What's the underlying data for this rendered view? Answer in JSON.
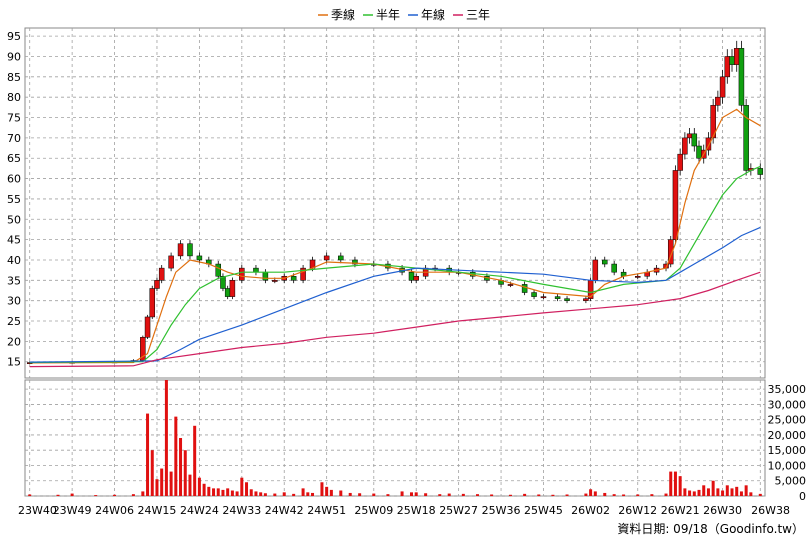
{
  "chart_data": {
    "type": "candlestick",
    "legend": {
      "placement": "top-center",
      "items": [
        {
          "name": "季線",
          "color": "#e07010"
        },
        {
          "name": "半年",
          "color": "#30c030"
        },
        {
          "name": "年線",
          "color": "#2060d0"
        },
        {
          "name": "三年",
          "color": "#d02060"
        }
      ]
    },
    "x_ticks": [
      "23W40",
      "23W49",
      "24W06",
      "24W15",
      "24W24",
      "24W33",
      "24W42",
      "24W51",
      "25W09",
      "25W18",
      "25W27",
      "25W36",
      "25W45",
      "26W02",
      "26W12",
      "26W21",
      "26W30",
      "26W38"
    ],
    "price_axis": {
      "min": 11,
      "max": 97,
      "ticks": [
        15,
        20,
        25,
        30,
        35,
        40,
        45,
        50,
        55,
        60,
        65,
        70,
        75,
        80,
        85,
        90,
        95
      ]
    },
    "volume_axis": {
      "min": 0,
      "max": 38000,
      "ticks": [
        0,
        5000,
        10000,
        15000,
        20000,
        25000,
        30000,
        35000
      ],
      "tick_labels": [
        "0",
        "5,000",
        "10,000",
        "15,000",
        "20,000",
        "25,000",
        "30,000",
        "35,000"
      ]
    },
    "price_points": [
      [
        "23W40",
        14.8
      ],
      [
        "23W49",
        14.9
      ],
      [
        "24W06",
        15
      ],
      [
        "24W10",
        15.3
      ],
      [
        "24W12",
        21
      ],
      [
        "24W13",
        26
      ],
      [
        "24W14",
        33
      ],
      [
        "24W15",
        35
      ],
      [
        "24W16",
        38
      ],
      [
        "24W18",
        41
      ],
      [
        "24W20",
        44
      ],
      [
        "24W22",
        41
      ],
      [
        "24W24",
        40
      ],
      [
        "24W26",
        39
      ],
      [
        "24W28",
        36
      ],
      [
        "24W29",
        33
      ],
      [
        "24W30",
        31
      ],
      [
        "24W31",
        35
      ],
      [
        "24W33",
        38
      ],
      [
        "24W36",
        37
      ],
      [
        "24W38",
        35
      ],
      [
        "24W40",
        35
      ],
      [
        "24W42",
        36
      ],
      [
        "24W44",
        35
      ],
      [
        "24W46",
        38
      ],
      [
        "24W48",
        40
      ],
      [
        "24W51",
        41
      ],
      [
        "25W02",
        40
      ],
      [
        "25W05",
        39
      ],
      [
        "25W09",
        39
      ],
      [
        "25W12",
        38
      ],
      [
        "25W15",
        37
      ],
      [
        "25W17",
        35
      ],
      [
        "25W18",
        36
      ],
      [
        "25W20",
        38
      ],
      [
        "25W22",
        38
      ],
      [
        "25W25",
        37
      ],
      [
        "25W27",
        37
      ],
      [
        "25W30",
        36
      ],
      [
        "25W33",
        35
      ],
      [
        "25W36",
        34
      ],
      [
        "25W38",
        34
      ],
      [
        "25W41",
        32
      ],
      [
        "25W43",
        31
      ],
      [
        "25W45",
        31
      ],
      [
        "25W48",
        30.5
      ],
      [
        "25W50",
        30
      ],
      [
        "26W01",
        30.5
      ],
      [
        "26W02",
        35
      ],
      [
        "26W03",
        40
      ],
      [
        "26W05",
        39
      ],
      [
        "26W07",
        37
      ],
      [
        "26W09",
        36
      ],
      [
        "26W12",
        36
      ],
      [
        "26W14",
        37
      ],
      [
        "26W16",
        38
      ],
      [
        "26W18",
        39
      ],
      [
        "26W19",
        45
      ],
      [
        "26W20",
        62
      ],
      [
        "26W21",
        66
      ],
      [
        "26W22",
        70
      ],
      [
        "26W23",
        71
      ],
      [
        "26W24",
        68
      ],
      [
        "26W25",
        65
      ],
      [
        "26W26",
        67
      ],
      [
        "26W27",
        70
      ],
      [
        "26W28",
        78
      ],
      [
        "26W29",
        80
      ],
      [
        "26W30",
        85
      ],
      [
        "26W31",
        90
      ],
      [
        "26W32",
        88
      ],
      [
        "26W33",
        92
      ],
      [
        "26W34",
        78
      ],
      [
        "26W35",
        62
      ],
      [
        "26W36",
        62.5
      ],
      [
        "26W38",
        61
      ]
    ],
    "series": [
      {
        "name": "季線",
        "color": "#e07010",
        "points": [
          [
            "23W40",
            14.7
          ],
          [
            "24W10",
            14.8
          ],
          [
            "24W13",
            17
          ],
          [
            "24W15",
            24
          ],
          [
            "24W17",
            31
          ],
          [
            "24W19",
            37
          ],
          [
            "24W22",
            40
          ],
          [
            "24W26",
            39
          ],
          [
            "24W30",
            37
          ],
          [
            "24W33",
            36
          ],
          [
            "24W38",
            35.5
          ],
          [
            "24W42",
            35.5
          ],
          [
            "24W48",
            38
          ],
          [
            "24W51",
            39.5
          ],
          [
            "25W09",
            39
          ],
          [
            "25W18",
            37
          ],
          [
            "25W27",
            37
          ],
          [
            "25W36",
            35
          ],
          [
            "25W45",
            32
          ],
          [
            "26W02",
            31
          ],
          [
            "26W05",
            34
          ],
          [
            "26W09",
            36
          ],
          [
            "26W14",
            37
          ],
          [
            "26W18",
            38
          ],
          [
            "26W20",
            44
          ],
          [
            "26W22",
            54
          ],
          [
            "26W24",
            62
          ],
          [
            "26W27",
            68
          ],
          [
            "26W30",
            75
          ],
          [
            "26W33",
            77
          ],
          [
            "26W35",
            75
          ],
          [
            "26W38",
            73
          ]
        ]
      },
      {
        "name": "半年",
        "color": "#30c030",
        "points": [
          [
            "23W40",
            14.8
          ],
          [
            "24W12",
            15
          ],
          [
            "24W15",
            18
          ],
          [
            "24W18",
            24
          ],
          [
            "24W21",
            29
          ],
          [
            "24W24",
            33
          ],
          [
            "24W28",
            35.5
          ],
          [
            "24W33",
            37
          ],
          [
            "24W42",
            37
          ],
          [
            "24W51",
            38
          ],
          [
            "25W09",
            39
          ],
          [
            "25W18",
            38
          ],
          [
            "25W27",
            37
          ],
          [
            "25W36",
            36
          ],
          [
            "25W45",
            34
          ],
          [
            "26W02",
            32
          ],
          [
            "26W09",
            34
          ],
          [
            "26W18",
            35
          ],
          [
            "26W21",
            38
          ],
          [
            "26W24",
            44
          ],
          [
            "26W27",
            50
          ],
          [
            "26W30",
            56
          ],
          [
            "26W33",
            60
          ],
          [
            "26W36",
            62
          ],
          [
            "26W38",
            63
          ]
        ]
      },
      {
        "name": "年線",
        "color": "#2060d0",
        "points": [
          [
            "23W40",
            14.9
          ],
          [
            "24W15",
            15.2
          ],
          [
            "24W20",
            18
          ],
          [
            "24W24",
            20.5
          ],
          [
            "24W33",
            24
          ],
          [
            "24W42",
            28
          ],
          [
            "24W51",
            32
          ],
          [
            "25W09",
            36
          ],
          [
            "25W18",
            38
          ],
          [
            "25W27",
            37.5
          ],
          [
            "25W36",
            37
          ],
          [
            "25W45",
            36.5
          ],
          [
            "26W02",
            35
          ],
          [
            "26W12",
            34.5
          ],
          [
            "26W18",
            35
          ],
          [
            "26W21",
            37
          ],
          [
            "26W24",
            39
          ],
          [
            "26W30",
            43
          ],
          [
            "26W34",
            46
          ],
          [
            "26W38",
            48
          ]
        ]
      },
      {
        "name": "三年",
        "color": "#d02060",
        "points": [
          [
            "23W40",
            13.8
          ],
          [
            "24W10",
            14
          ],
          [
            "24W15",
            15.5
          ],
          [
            "24W24",
            17
          ],
          [
            "24W33",
            18.5
          ],
          [
            "24W42",
            19.5
          ],
          [
            "24W51",
            21
          ],
          [
            "25W09",
            22
          ],
          [
            "25W18",
            23.5
          ],
          [
            "25W27",
            25
          ],
          [
            "25W36",
            26
          ],
          [
            "25W45",
            27
          ],
          [
            "26W02",
            28
          ],
          [
            "26W12",
            29
          ],
          [
            "26W21",
            30.5
          ],
          [
            "26W27",
            32.5
          ],
          [
            "26W33",
            35
          ],
          [
            "26W38",
            37
          ]
        ]
      }
    ],
    "volume_points": [
      [
        "23W40",
        500
      ],
      [
        "23W46",
        400
      ],
      [
        "23W49",
        800
      ],
      [
        "24W02",
        300
      ],
      [
        "24W06",
        400
      ],
      [
        "24W10",
        600
      ],
      [
        "24W12",
        1500
      ],
      [
        "24W13",
        27000
      ],
      [
        "24W14",
        15000
      ],
      [
        "24W15",
        5500
      ],
      [
        "24W16",
        9000
      ],
      [
        "24W17",
        38000
      ],
      [
        "24W18",
        8000
      ],
      [
        "24W19",
        26000
      ],
      [
        "24W20",
        19000
      ],
      [
        "24W21",
        15000
      ],
      [
        "24W22",
        7000
      ],
      [
        "24W23",
        23000
      ],
      [
        "24W24",
        6000
      ],
      [
        "24W25",
        4000
      ],
      [
        "24W26",
        3000
      ],
      [
        "24W27",
        2500
      ],
      [
        "24W28",
        2500
      ],
      [
        "24W29",
        2000
      ],
      [
        "24W30",
        2500
      ],
      [
        "24W31",
        1800
      ],
      [
        "24W32",
        1500
      ],
      [
        "24W33",
        6000
      ],
      [
        "24W34",
        4500
      ],
      [
        "24W35",
        2200
      ],
      [
        "24W36",
        1500
      ],
      [
        "24W37",
        1200
      ],
      [
        "24W38",
        900
      ],
      [
        "24W40",
        800
      ],
      [
        "24W42",
        1200
      ],
      [
        "24W44",
        700
      ],
      [
        "24W46",
        2500
      ],
      [
        "24W47",
        1200
      ],
      [
        "24W48",
        1000
      ],
      [
        "24W50",
        4500
      ],
      [
        "24W51",
        3000
      ],
      [
        "24W52",
        2000
      ],
      [
        "25W02",
        1800
      ],
      [
        "25W04",
        1000
      ],
      [
        "25W06",
        900
      ],
      [
        "25W09",
        800
      ],
      [
        "25W12",
        600
      ],
      [
        "25W15",
        1500
      ],
      [
        "25W17",
        1200
      ],
      [
        "25W18",
        1200
      ],
      [
        "25W20",
        900
      ],
      [
        "25W23",
        600
      ],
      [
        "25W25",
        800
      ],
      [
        "25W28",
        700
      ],
      [
        "25W31",
        600
      ],
      [
        "25W34",
        500
      ],
      [
        "25W38",
        400
      ],
      [
        "25W41",
        700
      ],
      [
        "25W44",
        500
      ],
      [
        "25W47",
        400
      ],
      [
        "25W50",
        500
      ],
      [
        "26W01",
        800
      ],
      [
        "26W02",
        2200
      ],
      [
        "26W03",
        1500
      ],
      [
        "26W05",
        1000
      ],
      [
        "26W07",
        600
      ],
      [
        "26W09",
        500
      ],
      [
        "26W12",
        500
      ],
      [
        "26W15",
        600
      ],
      [
        "26W18",
        800
      ],
      [
        "26W19",
        8000
      ],
      [
        "26W20",
        8000
      ],
      [
        "26W21",
        6500
      ],
      [
        "26W22",
        2500
      ],
      [
        "26W23",
        1800
      ],
      [
        "26W24",
        1500
      ],
      [
        "26W25",
        2000
      ],
      [
        "26W26",
        3500
      ],
      [
        "26W27",
        2500
      ],
      [
        "26W28",
        5000
      ],
      [
        "26W29",
        2500
      ],
      [
        "26W30",
        1800
      ],
      [
        "26W31",
        3500
      ],
      [
        "26W32",
        2500
      ],
      [
        "26W33",
        3000
      ],
      [
        "26W34",
        1500
      ],
      [
        "26W35",
        3500
      ],
      [
        "26W36",
        1200
      ],
      [
        "26W38",
        700
      ]
    ],
    "footer": "資料日期: 09/18（Goodinfo.tw）"
  }
}
